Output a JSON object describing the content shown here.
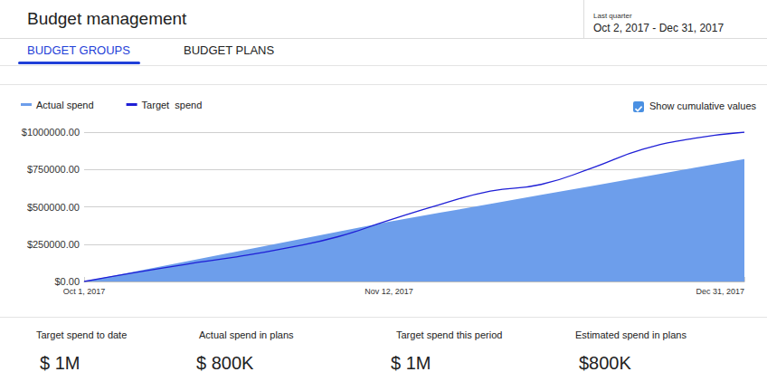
{
  "header": {
    "title": "Budget management",
    "period_label": "Last quarter",
    "period": "Oct 2, 2017 - Dec 31, 2017"
  },
  "tabs": [
    {
      "label": "BUDGET GROUPS",
      "active": true
    },
    {
      "label": "BUDGET PLANS",
      "active": false
    }
  ],
  "checkbox": {
    "label": "Show cumulative values",
    "checked": true
  },
  "chart_data": {
    "type": "line",
    "categories": [
      "Oct 1, 2017",
      null,
      null,
      null,
      null,
      null,
      "Nov 12, 2017",
      null,
      null,
      null,
      null,
      null,
      null,
      "Dec 31, 2017"
    ],
    "series": [
      {
        "name": "Actual spend",
        "type": "area",
        "color": "#6d9eeb",
        "values": [
          0,
          67000,
          134000,
          200000,
          267000,
          334000,
          400000,
          460000,
          520000,
          580000,
          640000,
          700000,
          760000,
          820000
        ]
      },
      {
        "name": "Target  spend",
        "type": "line",
        "color": "#1f1fd6",
        "values": [
          0,
          60000,
          115000,
          165000,
          225000,
          300000,
          410000,
          515000,
          605000,
          650000,
          760000,
          885000,
          958000,
          1000000
        ]
      }
    ],
    "ylim": [
      0,
      1000000
    ],
    "yticks": [
      {
        "value": 0,
        "label": "$0.00"
      },
      {
        "value": 250000,
        "label": "$250000.00"
      },
      {
        "value": 500000,
        "label": "$500000.00"
      },
      {
        "value": 750000,
        "label": "$750000.00"
      },
      {
        "value": 1000000,
        "label": "$1000000.00"
      }
    ],
    "grid": true,
    "legend": "top-left"
  },
  "summary": [
    {
      "label": "Target spend to date",
      "value": "$ 1M"
    },
    {
      "label": "Actual spend in plans",
      "value": "$ 800K"
    },
    {
      "label": "Target spend this period",
      "value": "$ 1M"
    },
    {
      "label": "Estimated spend in plans",
      "value": "$800K"
    }
  ]
}
